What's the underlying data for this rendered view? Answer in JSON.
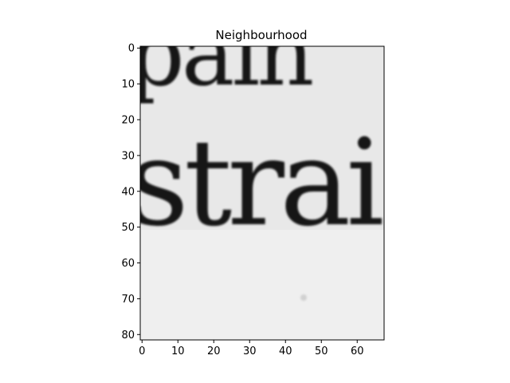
{
  "chart_data": {
    "type": "heatmap",
    "title": "Neighbourhood",
    "xlabel": "",
    "ylabel": "",
    "x_range": [
      0,
      67
    ],
    "y_range": [
      0,
      81
    ],
    "y_inverted": true,
    "grid": false,
    "colormap": "grayscale",
    "x_ticks": [
      0,
      10,
      20,
      30,
      40,
      50,
      60
    ],
    "y_ticks": [
      0,
      10,
      20,
      30,
      40,
      50,
      60,
      70,
      80
    ],
    "image_content": {
      "text_line_1": "pain",
      "text_line_2": "strai"
    }
  }
}
